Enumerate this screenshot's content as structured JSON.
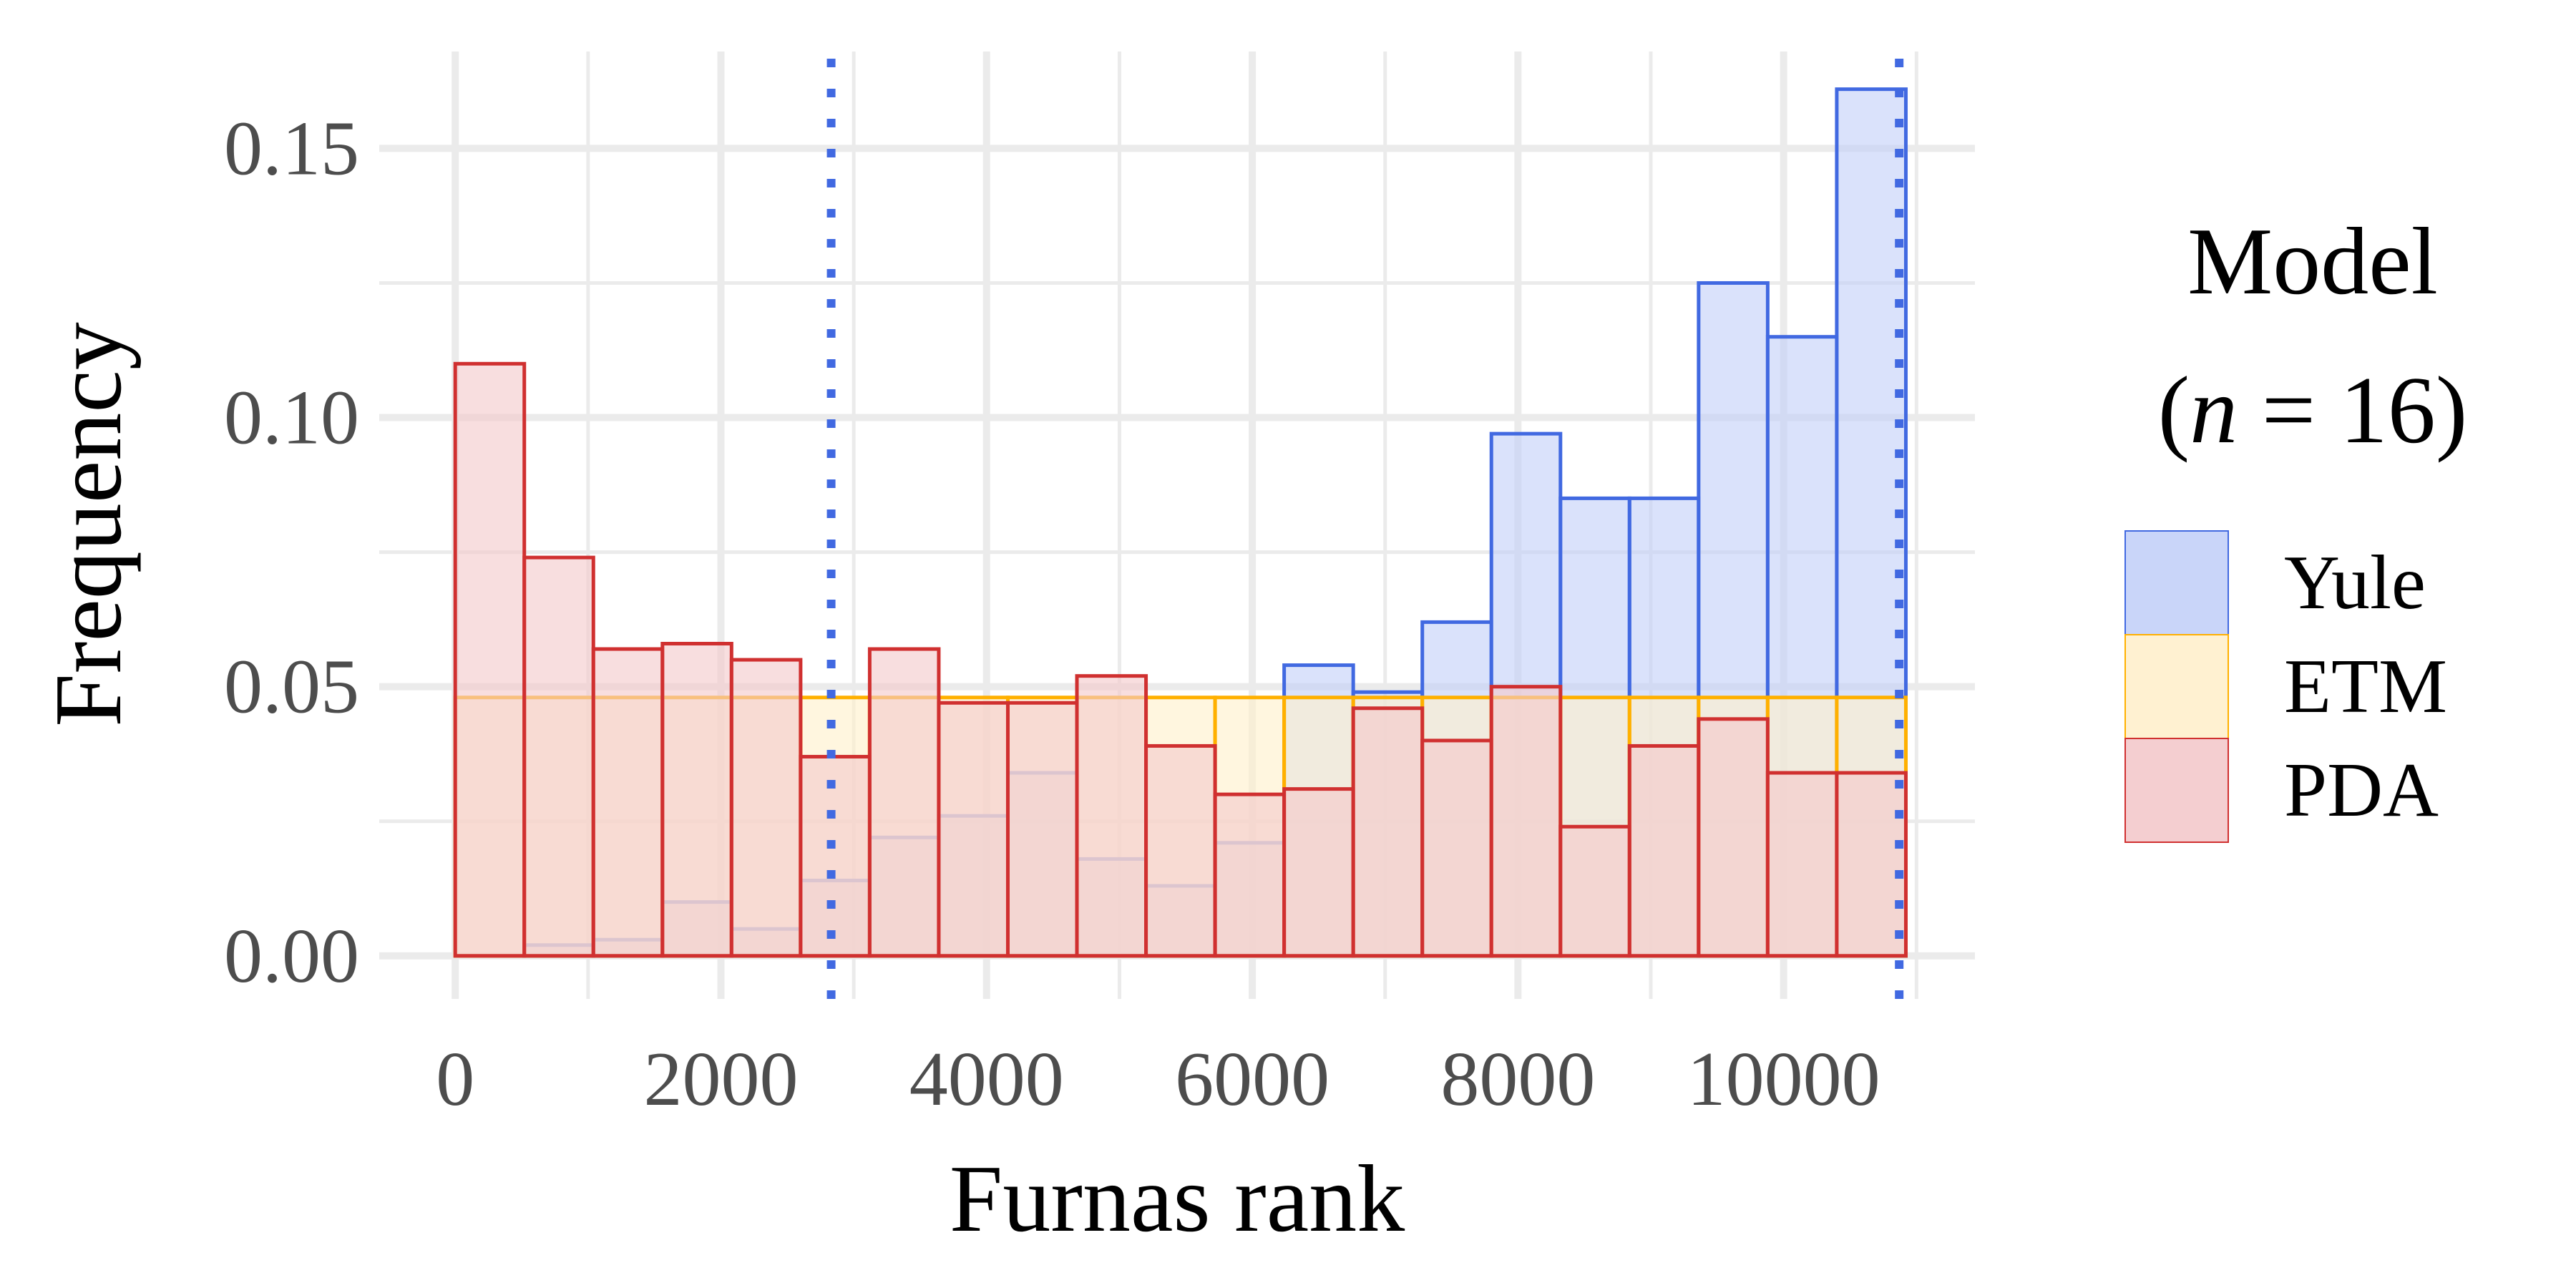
{
  "chart_data": {
    "type": "histogram",
    "xlabel": "Furnas rank",
    "ylabel": "Frequency",
    "xlim": [
      -572,
      11440
    ],
    "ylim": [
      -0.008,
      0.168
    ],
    "x_ticks": [
      0,
      2000,
      4000,
      6000,
      8000,
      10000
    ],
    "x_tick_labels": [
      "0",
      "2000",
      "4000",
      "6000",
      "8000",
      "10000"
    ],
    "y_ticks": [
      0.0,
      0.05,
      0.1,
      0.15
    ],
    "y_tick_labels": [
      "0.00",
      "0.05",
      "0.10",
      "0.15"
    ],
    "x_minor_ticks": [
      1000,
      3000,
      5000,
      7000,
      9000,
      11000
    ],
    "y_minor_ticks": [
      0.025,
      0.075,
      0.125
    ],
    "grid": true,
    "bin_edges": [
      0,
      520,
      1040,
      1560,
      2080,
      2600,
      3120,
      3640,
      4160,
      4680,
      5200,
      5720,
      6240,
      6760,
      7280,
      7800,
      8320,
      8840,
      9360,
      9880,
      10400,
      10920
    ],
    "series": [
      {
        "name": "Yule",
        "color": "#4169e1",
        "fill": "#c3d0f8",
        "values": [
          0.0,
          0.002,
          0.003,
          0.01,
          0.005,
          0.014,
          0.022,
          0.026,
          0.034,
          0.018,
          0.013,
          0.021,
          0.054,
          0.049,
          0.062,
          0.097,
          0.085,
          0.085,
          0.125,
          0.115,
          0.161
        ]
      },
      {
        "name": "ETM",
        "color": "#ffb000",
        "fill": "#fff0cc",
        "values": [
          0.048,
          0.048,
          0.048,
          0.048,
          0.048,
          0.048,
          0.048,
          0.048,
          0.048,
          0.048,
          0.048,
          0.048,
          0.048,
          0.048,
          0.048,
          0.048,
          0.048,
          0.048,
          0.048,
          0.048,
          0.048
        ]
      },
      {
        "name": "PDA",
        "color": "#d03030",
        "fill": "#f3c9cb",
        "values": [
          0.11,
          0.074,
          0.057,
          0.058,
          0.055,
          0.037,
          0.057,
          0.047,
          0.047,
          0.052,
          0.039,
          0.03,
          0.031,
          0.046,
          0.04,
          0.05,
          0.024,
          0.039,
          0.044,
          0.034,
          0.034
        ]
      }
    ],
    "vlines": [
      {
        "x": 2830,
        "color": "#4169e1",
        "style": "dotted"
      },
      {
        "x": 10870,
        "color": "#4169e1",
        "style": "dotted"
      }
    ],
    "legend": {
      "title_line1": "Model",
      "title_line2_open": "(",
      "title_line2_italic": "n",
      "title_line2_rest": " = 16)",
      "position": "right"
    }
  }
}
